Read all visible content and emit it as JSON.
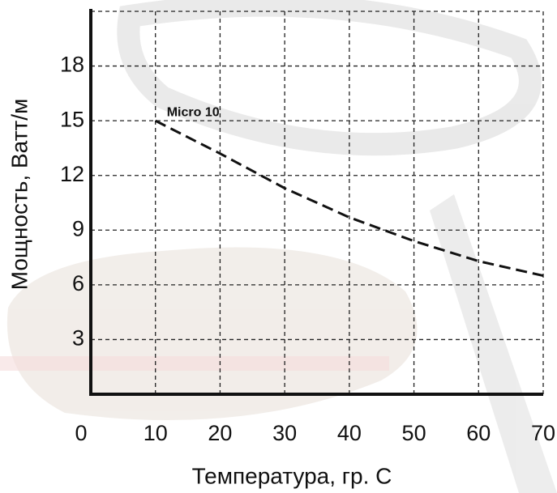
{
  "chart_data": {
    "type": "line",
    "x_label": "Температура, гр. С",
    "y_label": "Мощность, Ватт/м",
    "x": [
      10,
      20,
      30,
      40,
      50,
      60,
      70
    ],
    "series": [
      {
        "name": "Micro 10",
        "color": "#111111",
        "values": [
          15,
          13.2,
          11.3,
          9.7,
          8.4,
          7.3,
          6.5
        ]
      }
    ],
    "xlim": [
      0,
      70
    ],
    "xticks": [
      0,
      10,
      20,
      30,
      40,
      50,
      60,
      70
    ],
    "ylim": [
      0,
      21
    ],
    "yticks": [
      3,
      6,
      9,
      12,
      15,
      18
    ],
    "grid": true
  }
}
